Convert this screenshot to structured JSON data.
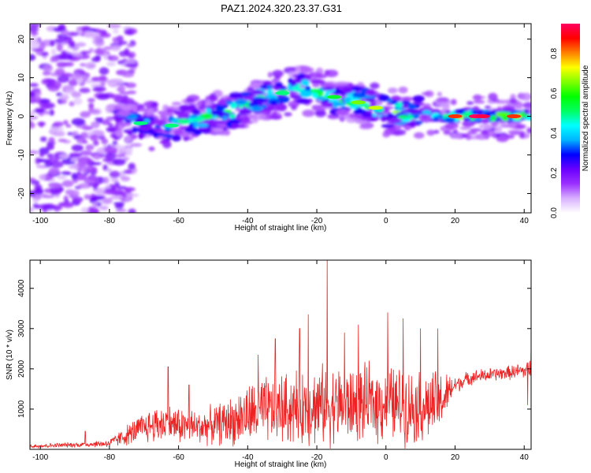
{
  "title": "PAZ1.2024.320.23.37.G31",
  "chart_data": [
    {
      "type": "heatmap",
      "xlabel": "Height of straight line (km)",
      "ylabel": "Frequency (Hz)",
      "xlim": [
        -103,
        42
      ],
      "ylim": [
        -25,
        24
      ],
      "x_ticks": [
        -100,
        -80,
        -60,
        -40,
        -20,
        0,
        20,
        40
      ],
      "y_ticks": [
        -20,
        -10,
        0,
        10,
        20
      ],
      "colorbar": {
        "label": "Normalized spectral amplitude",
        "range": [
          0,
          0.95
        ],
        "ticks": [
          0.0,
          0.2,
          0.4,
          0.6,
          0.8
        ],
        "colors": [
          "#ffffff",
          "#d8b0ff",
          "#9b30ff",
          "#6a00ff",
          "#0000ff",
          "#00b4ff",
          "#00ffff",
          "#00ff60",
          "#00ff00",
          "#80ff00",
          "#ffff00",
          "#ff8000",
          "#ff0000",
          "#ff0060"
        ]
      },
      "ridge": {
        "x": [
          -100,
          -90,
          -80,
          -75,
          -70,
          -65,
          -60,
          -55,
          -50,
          -45,
          -40,
          -35,
          -30,
          -25,
          -20,
          -15,
          -10,
          -5,
          0,
          5,
          10,
          15,
          20,
          25,
          30,
          35,
          40,
          42
        ],
        "freq": [
          0,
          0,
          0,
          -1,
          -2,
          -3,
          -2,
          -1,
          0,
          1,
          3,
          5,
          6,
          7,
          6,
          5,
          4,
          3,
          1,
          1,
          1,
          0,
          0,
          0,
          0,
          0,
          0,
          0
        ],
        "amp": [
          0.2,
          0.2,
          0.2,
          0.45,
          0.5,
          0.5,
          0.55,
          0.55,
          0.6,
          0.6,
          0.6,
          0.6,
          0.6,
          0.6,
          0.6,
          0.6,
          0.65,
          0.7,
          0.75,
          0.65,
          0.55,
          0.55,
          0.85,
          0.95,
          0.9,
          0.85,
          0.8,
          0.7
        ]
      }
    },
    {
      "type": "line",
      "xlabel": "Height of straight line (km)",
      "ylabel": "SNR (10 * v/v)",
      "xlim": [
        -103,
        42
      ],
      "ylim": [
        0,
        4700
      ],
      "x_ticks": [
        -100,
        -80,
        -60,
        -40,
        -20,
        0,
        20,
        40
      ],
      "y_ticks": [
        1000,
        2000,
        3000,
        4000
      ],
      "series": [
        {
          "color": "#ee2222",
          "x": [
            -103,
            -95,
            -87,
            -80,
            -75,
            -70,
            -65,
            -60,
            -55,
            -50,
            -45,
            -40,
            -35,
            -30,
            -25,
            -20,
            -17,
            -15,
            -10,
            -5,
            0,
            5,
            10,
            15,
            20,
            25,
            30,
            35,
            40,
            42
          ],
          "base": [
            80,
            100,
            120,
            150,
            350,
            550,
            650,
            600,
            550,
            600,
            700,
            850,
            950,
            1000,
            1050,
            1100,
            1100,
            1100,
            1100,
            1150,
            1150,
            1100,
            1050,
            1100,
            1600,
            1800,
            1850,
            1900,
            1950,
            2000
          ],
          "spread": [
            60,
            70,
            80,
            120,
            300,
            450,
            600,
            550,
            500,
            550,
            700,
            900,
            1000,
            1050,
            1100,
            1150,
            1150,
            1150,
            1100,
            1100,
            1150,
            1100,
            1050,
            1000,
            250,
            200,
            200,
            200,
            250,
            300
          ],
          "peaks": [
            {
              "x": -87,
              "y": 450
            },
            {
              "x": -63,
              "y": 2050
            },
            {
              "x": -57,
              "y": 1600
            },
            {
              "x": -37,
              "y": 2350
            },
            {
              "x": -32,
              "y": 2750
            },
            {
              "x": -25,
              "y": 3000
            },
            {
              "x": -22.5,
              "y": 3350
            },
            {
              "x": -17,
              "y": 4700
            },
            {
              "x": -12,
              "y": 2900
            },
            {
              "x": -8,
              "y": 3100
            },
            {
              "x": 0.5,
              "y": 3400
            },
            {
              "x": 5,
              "y": 3250
            },
            {
              "x": 10,
              "y": 3000
            },
            {
              "x": 15,
              "y": 3000
            },
            {
              "x": 41,
              "y": 1100
            },
            {
              "x": 42,
              "y": 2650
            }
          ]
        }
      ]
    }
  ]
}
